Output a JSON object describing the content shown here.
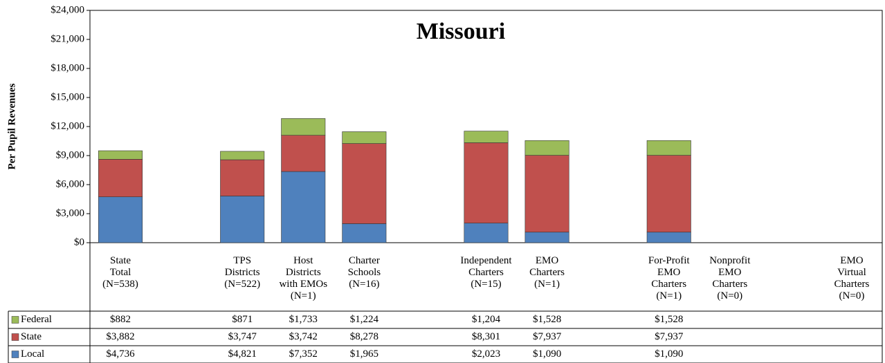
{
  "chart_data": {
    "type": "bar",
    "stacked": true,
    "title": "Missouri",
    "y_label": "Per Pupil Revenues",
    "categories": [
      "State\nTotal\n(N=538)",
      null,
      "TPS\nDistricts\n(N=522)",
      "Host\nDistricts\nwith EMOs\n(N=1)",
      "Charter\nSchools\n(N=16)",
      null,
      "Independent\nCharters\n(N=15)",
      "EMO\nCharters\n(N=1)",
      null,
      "For-Profit\nEMO\nCharters\n(N=1)",
      "Nonprofit\nEMO\nCharters\n(N=0)",
      null,
      "EMO\nVirtual\nCharters\n(N=0)"
    ],
    "series": [
      {
        "name": "Local",
        "color": "#4f81bd",
        "values": [
          4736,
          null,
          4821,
          7352,
          1965,
          null,
          2023,
          1090,
          null,
          1090,
          null,
          null,
          null
        ],
        "value_labels": [
          "$4,736",
          null,
          "$4,821",
          "$7,352",
          "$1,965",
          null,
          "$2,023",
          "$1,090",
          null,
          "$1,090",
          null,
          null,
          null
        ]
      },
      {
        "name": "State",
        "color": "#c0504d",
        "values": [
          3882,
          null,
          3747,
          3742,
          8278,
          null,
          8301,
          7937,
          null,
          7937,
          null,
          null,
          null
        ],
        "value_labels": [
          "$3,882",
          null,
          "$3,747",
          "$3,742",
          "$8,278",
          null,
          "$8,301",
          "$7,937",
          null,
          "$7,937",
          null,
          null,
          null
        ]
      },
      {
        "name": "Federal",
        "color": "#9bbb59",
        "values": [
          882,
          null,
          871,
          1733,
          1224,
          null,
          1204,
          1528,
          null,
          1528,
          null,
          null,
          null
        ],
        "value_labels": [
          "$882",
          null,
          "$871",
          "$1,733",
          "$1,224",
          null,
          "$1,204",
          "$1,528",
          null,
          "$1,528",
          null,
          null,
          null
        ]
      }
    ],
    "ylim": [
      0,
      24000
    ],
    "yticks": [
      {
        "value": 0,
        "label": "$0"
      },
      {
        "value": 3000,
        "label": "$3,000"
      },
      {
        "value": 6000,
        "label": "$6,000"
      },
      {
        "value": 9000,
        "label": "$9,000"
      },
      {
        "value": 12000,
        "label": "$12,000"
      },
      {
        "value": 15000,
        "label": "$15,000"
      },
      {
        "value": 18000,
        "label": "$18,000"
      },
      {
        "value": 21000,
        "label": "$21,000"
      },
      {
        "value": 24000,
        "label": "$24,000"
      }
    ]
  }
}
